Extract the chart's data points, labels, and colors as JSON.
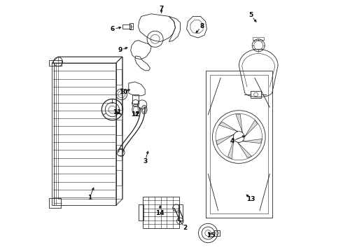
{
  "background_color": "#ffffff",
  "line_color": "#222222",
  "label_color": "#000000",
  "figsize": [
    4.9,
    3.6
  ],
  "dpi": 100,
  "label_fontsize": 6.5,
  "label_positions": {
    "1": [
      0.175,
      0.215,
      0.185,
      0.245
    ],
    "2": [
      0.555,
      0.095,
      0.565,
      0.115
    ],
    "3": [
      0.395,
      0.36,
      0.405,
      0.385
    ],
    "4": [
      0.74,
      0.44,
      0.755,
      0.455
    ],
    "5": [
      0.815,
      0.94,
      0.828,
      0.925
    ],
    "6": [
      0.265,
      0.885,
      0.285,
      0.885
    ],
    "7": [
      0.46,
      0.965,
      0.46,
      0.945
    ],
    "8": [
      0.62,
      0.895,
      0.605,
      0.875
    ],
    "9": [
      0.295,
      0.8,
      0.31,
      0.81
    ],
    "10": [
      0.31,
      0.635,
      0.325,
      0.645
    ],
    "11": [
      0.285,
      0.555,
      0.295,
      0.565
    ],
    "12": [
      0.355,
      0.545,
      0.37,
      0.55
    ],
    "13": [
      0.815,
      0.21,
      0.8,
      0.225
    ],
    "14": [
      0.455,
      0.155,
      0.455,
      0.175
    ],
    "15": [
      0.655,
      0.065,
      0.645,
      0.08
    ]
  }
}
